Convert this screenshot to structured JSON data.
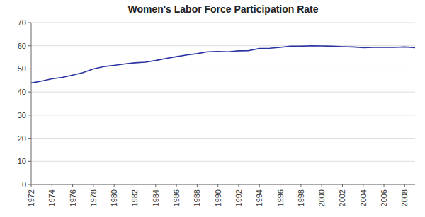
{
  "chart_data": {
    "type": "line",
    "title": "Women's Labor Force Participation Rate",
    "x": [
      1972,
      1973,
      1974,
      1975,
      1976,
      1977,
      1978,
      1979,
      1980,
      1981,
      1982,
      1983,
      1984,
      1985,
      1986,
      1987,
      1988,
      1989,
      1990,
      1991,
      1992,
      1993,
      1994,
      1995,
      1996,
      1997,
      1998,
      1999,
      2000,
      2001,
      2002,
      2003,
      2004,
      2005,
      2006,
      2007,
      2008,
      2009
    ],
    "values": [
      43.9,
      44.7,
      45.7,
      46.3,
      47.3,
      48.4,
      50.0,
      51.0,
      51.5,
      52.1,
      52.6,
      52.9,
      53.6,
      54.5,
      55.3,
      56.0,
      56.6,
      57.4,
      57.5,
      57.4,
      57.8,
      57.9,
      58.8,
      58.9,
      59.3,
      59.8,
      59.8,
      60.0,
      59.9,
      59.8,
      59.6,
      59.5,
      59.2,
      59.3,
      59.4,
      59.3,
      59.5,
      59.2
    ],
    "color": "#2832a0",
    "xlim": [
      1972,
      2009
    ],
    "ylim": [
      0,
      70
    ],
    "xticks": [
      1972,
      1974,
      1976,
      1978,
      1980,
      1982,
      1984,
      1986,
      1988,
      1990,
      1992,
      1994,
      1996,
      1998,
      2000,
      2002,
      2004,
      2006,
      2008
    ],
    "yticks": [
      0,
      10,
      20,
      30,
      40,
      50,
      60,
      70
    ],
    "grid": true
  }
}
